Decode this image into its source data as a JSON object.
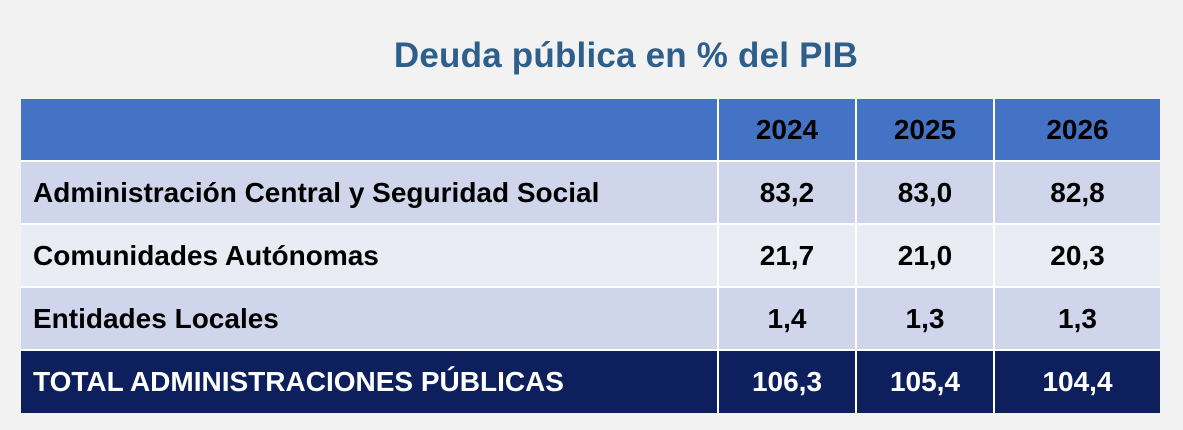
{
  "title": "Deuda pública en % del PIB",
  "table": {
    "header": {
      "label": "",
      "years": [
        "2024",
        "2025",
        "2026"
      ]
    },
    "rows": [
      {
        "label": "Administración Central y Seguridad Social",
        "values": [
          "83,2",
          "83,0",
          "82,8"
        ]
      },
      {
        "label": "Comunidades Autónomas",
        "values": [
          "21,7",
          "21,0",
          "20,3"
        ]
      },
      {
        "label": "Entidades Locales",
        "values": [
          "1,4",
          "1,3",
          "1,3"
        ]
      }
    ],
    "total": {
      "label": "TOTAL ADMINISTRACIONES PÚBLICAS",
      "values": [
        "106,3",
        "105,4",
        "104,4"
      ]
    }
  },
  "colors": {
    "title": "#2e5f8a",
    "header_bg": "#4472c4",
    "row_odd_bg": "#cfd5ea",
    "row_even_bg": "#e9ebf5",
    "total_bg": "#0d1f5c",
    "page_bg": "#f2f2f2"
  }
}
